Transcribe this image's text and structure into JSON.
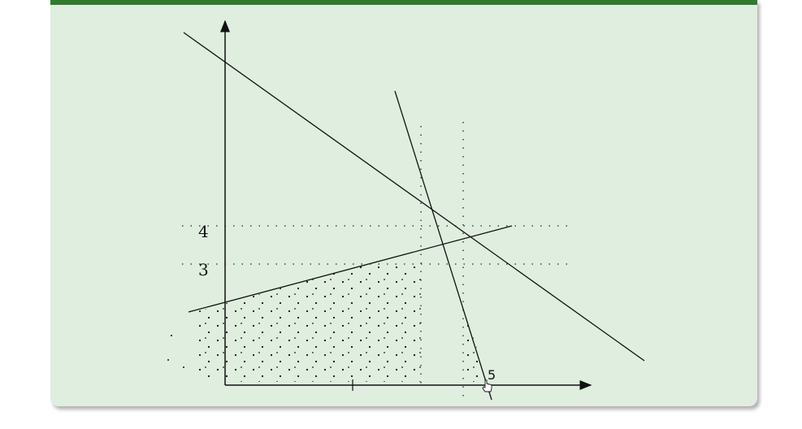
{
  "diagram": {
    "y_tick_labels": [
      "4",
      "3"
    ],
    "cursor_label": "5"
  }
}
